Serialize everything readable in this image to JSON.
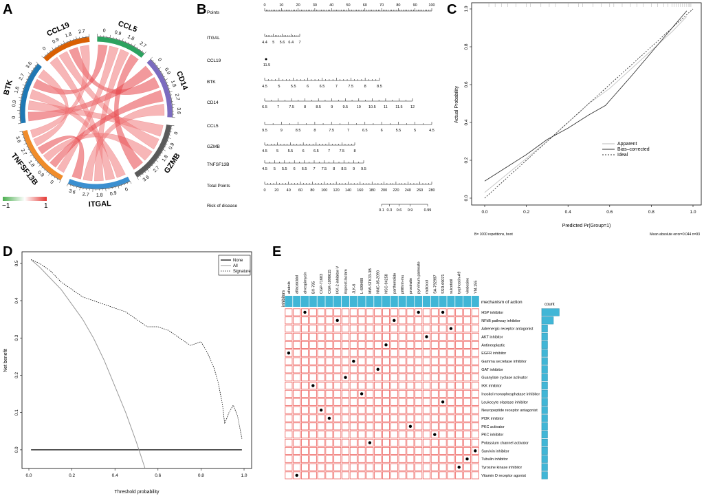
{
  "panels": {
    "a": "A",
    "b": "B",
    "c": "C",
    "d": "D",
    "e": "E"
  },
  "chord": {
    "sectors": [
      {
        "name": "BTK",
        "color": "#1f78b4",
        "ticks": [
          "0",
          "0.9",
          "1.8",
          "2.7",
          "3.6"
        ]
      },
      {
        "name": "CCL19",
        "color": "#d95f02",
        "ticks": [
          "0",
          "0.9",
          "1.8",
          "2.7"
        ]
      },
      {
        "name": "CCL5",
        "color": "#2ca25f",
        "ticks": [
          "0",
          "0.9",
          "1.8",
          "2.7"
        ]
      },
      {
        "name": "CD14",
        "color": "#7b6bbf",
        "ticks": [
          "0",
          "0.9",
          "1.8",
          "2.7",
          "3.6"
        ]
      },
      {
        "name": "GZMB",
        "color": "#5a5a5a",
        "ticks": [
          "0",
          "0.9",
          "1.8",
          "2.7",
          "3.6"
        ]
      },
      {
        "name": "ITGAL",
        "color": "#3b8fd0",
        "ticks": [
          "0",
          "0.9",
          "1.8",
          "2.7",
          "3.6"
        ]
      },
      {
        "name": "TNFSF13B",
        "color": "#f08c2a",
        "ticks": [
          "0",
          "0.9",
          "1.8",
          "2.7",
          "3.6"
        ]
      }
    ],
    "links": [
      [
        0,
        3
      ],
      [
        0,
        4
      ],
      [
        0,
        5
      ],
      [
        0,
        2
      ],
      [
        1,
        5
      ],
      [
        1,
        4
      ],
      [
        1,
        3
      ],
      [
        2,
        6
      ],
      [
        2,
        5
      ],
      [
        3,
        6
      ],
      [
        3,
        5
      ],
      [
        4,
        6
      ],
      [
        5,
        6
      ],
      [
        0,
        6
      ],
      [
        1,
        6
      ],
      [
        2,
        4
      ]
    ],
    "legend": {
      "min": "−1",
      "max": "1"
    }
  },
  "nomogram": {
    "rows": [
      {
        "label": "Points",
        "ticks": [
          "0",
          "10",
          "20",
          "30",
          "40",
          "50",
          "60",
          "70",
          "80",
          "90",
          "100"
        ]
      },
      {
        "label": "ITGAL",
        "ticks": [
          "4.4",
          "5",
          "5.6",
          "6.4",
          "7"
        ]
      },
      {
        "label": "CCL19",
        "ticks": [
          "11.5"
        ]
      },
      {
        "label": "BTK",
        "ticks": [
          "4.5",
          "5",
          "5.5",
          "6",
          "6.5",
          "7",
          "7.5",
          "8",
          "8.5"
        ]
      },
      {
        "label": "CD14",
        "ticks": [
          "6.5",
          "7",
          "7.5",
          "8",
          "8.5",
          "9",
          "9.5",
          "10",
          "10.5",
          "11",
          "11.5",
          "12"
        ]
      },
      {
        "label": "CCL5",
        "ticks": [
          "9.5",
          "9",
          "8.5",
          "8",
          "7.5",
          "7",
          "6.5",
          "6",
          "5.5",
          "5",
          "4.5"
        ]
      },
      {
        "label": "GZMB",
        "ticks": [
          "4.5",
          "5",
          "5.5",
          "6",
          "6.5",
          "7",
          "7.5",
          "8"
        ]
      },
      {
        "label": "TNFSF13B",
        "ticks": [
          "4.5",
          "5",
          "5.5",
          "6",
          "6.5",
          "7",
          "7.5",
          "8",
          "8.5",
          "9",
          "9.5"
        ]
      },
      {
        "label": "Total Points",
        "ticks": [
          "0",
          "20",
          "40",
          "60",
          "80",
          "100",
          "120",
          "140",
          "160",
          "180",
          "200",
          "220",
          "240",
          "260",
          "280"
        ]
      },
      {
        "label": "Risk of disease",
        "ticks": [
          "0.1",
          "0.3",
          "0.6",
          "0.9",
          "0.99"
        ]
      }
    ]
  },
  "chart_data": [
    {
      "id": "calibration",
      "type": "line",
      "xlabel": "Predicted Pr(Group=1)",
      "ylabel": "Actual Probability",
      "xlim": [
        0,
        1
      ],
      "ylim": [
        0,
        1
      ],
      "xticks": [
        "0.0",
        "0.2",
        "0.4",
        "0.6",
        "0.8",
        "1.0"
      ],
      "yticks": [
        "0.0",
        "0.2",
        "0.4",
        "0.6",
        "0.8",
        "1.0"
      ],
      "footer_left": "B= 1000 repetitions, boot",
      "footer_right": "Mean absolute error=0.044 n=93",
      "series": [
        {
          "name": "Apparent",
          "x": [
            0,
            0.1,
            0.2,
            0.3,
            0.4,
            0.5,
            0.6,
            0.7,
            0.8,
            0.9,
            0.97
          ],
          "y": [
            0.03,
            0.12,
            0.21,
            0.3,
            0.4,
            0.5,
            0.58,
            0.68,
            0.78,
            0.88,
            0.96
          ]
        },
        {
          "name": "Bias–corrected",
          "x": [
            0,
            0.1,
            0.2,
            0.3,
            0.4,
            0.5,
            0.58,
            0.7,
            0.8,
            0.9,
            0.97
          ],
          "y": [
            0.09,
            0.16,
            0.23,
            0.31,
            0.37,
            0.44,
            0.49,
            0.64,
            0.77,
            0.9,
            0.99
          ]
        },
        {
          "name": "Ideal",
          "x": [
            0,
            1
          ],
          "y": [
            0,
            1
          ]
        }
      ]
    },
    {
      "id": "dca",
      "type": "line",
      "xlabel": "Threshold probability",
      "ylabel": "Net benefit",
      "xlim": [
        0,
        1
      ],
      "ylim": [
        -0.05,
        0.52
      ],
      "xticks": [
        "0.0",
        "0.2",
        "0.4",
        "0.6",
        "0.8",
        "1.0"
      ],
      "yticks": [
        "0.0",
        "0.1",
        "0.2",
        "0.3",
        "0.4",
        "0.5"
      ],
      "series": [
        {
          "name": "None",
          "x": [
            0.01,
            0.99
          ],
          "y": [
            0,
            0
          ]
        },
        {
          "name": "All",
          "x": [
            0.01,
            0.05,
            0.1,
            0.15,
            0.2,
            0.25,
            0.3,
            0.35,
            0.4,
            0.45,
            0.5,
            0.54
          ],
          "y": [
            0.51,
            0.49,
            0.46,
            0.43,
            0.39,
            0.35,
            0.3,
            0.24,
            0.17,
            0.1,
            0.02,
            -0.05
          ]
        },
        {
          "name": "Signature",
          "x": [
            0.01,
            0.05,
            0.1,
            0.15,
            0.2,
            0.25,
            0.3,
            0.35,
            0.4,
            0.45,
            0.5,
            0.55,
            0.6,
            0.65,
            0.7,
            0.75,
            0.8,
            0.83,
            0.86,
            0.88,
            0.9,
            0.91,
            0.93,
            0.95,
            0.97,
            0.99
          ],
          "y": [
            0.51,
            0.5,
            0.48,
            0.45,
            0.43,
            0.41,
            0.4,
            0.39,
            0.38,
            0.37,
            0.35,
            0.33,
            0.33,
            0.32,
            0.3,
            0.28,
            0.29,
            0.26,
            0.22,
            0.18,
            0.12,
            0.07,
            0.1,
            0.12,
            0.09,
            0.03
          ]
        }
      ]
    },
    {
      "id": "drug_matrix",
      "type": "heatmap",
      "header": "mechanism of action",
      "row_label": "inhibitors",
      "count_label": "count",
      "drugs": [
        "afatinib",
        "alfacalcidol",
        "alvespimycin",
        "BX-795",
        "CGP-71683",
        "CGK-1098615",
        "IKK-2-inhibitor-V",
        "iloprost-lactam",
        "JLK-6",
        "L-690488",
        "MW-STK33-3B",
        "NNC-05-2090",
        "NSC-94258",
        "parthenolide",
        "pifithrin-mu",
        "prostratin",
        "pyrvinium-pamoate",
        "radicicol",
        "SA-792987",
        "SSR-69071",
        "sulcotidil",
        "tyrphostin-A9",
        "vindesine",
        "YM-155"
      ],
      "mechanisms": [
        "HSP inhibitor",
        "NFkB pathway inhibitor",
        "Adrenergic receptor antagonist",
        "AKT inhibitor",
        "Antineoplastic",
        "EGFR inhibitor",
        "Gamma secretase inhibitor",
        "GAT inhibitor",
        "Guanylate cyclase activator",
        "IKK inhibitor",
        "Inositol monophosphatase inhibitor",
        "Leukocyte elastase inhibitor",
        "Neuropeptide receptor antagonist",
        "PI3K inhibitor",
        "PKC activator",
        "PKC inhibitor",
        "Potassium channel activator",
        "Survivin inhibitor",
        "Tubulin inhibitor",
        "Tyrosine kinase inhibitor",
        "Vitamin D receptor agonist"
      ],
      "hits": [
        [
          0,
          2
        ],
        [
          0,
          16
        ],
        [
          0,
          19
        ],
        [
          1,
          6
        ],
        [
          1,
          13
        ],
        [
          2,
          20
        ],
        [
          3,
          17
        ],
        [
          4,
          12
        ],
        [
          5,
          0
        ],
        [
          6,
          8
        ],
        [
          7,
          11
        ],
        [
          8,
          7
        ],
        [
          9,
          3
        ],
        [
          10,
          9
        ],
        [
          11,
          19
        ],
        [
          12,
          4
        ],
        [
          13,
          5
        ],
        [
          14,
          15
        ],
        [
          15,
          18
        ],
        [
          16,
          10
        ],
        [
          17,
          23
        ],
        [
          18,
          22
        ],
        [
          19,
          21
        ],
        [
          20,
          1
        ]
      ],
      "counts": [
        3,
        2,
        1,
        1,
        1,
        1,
        1,
        1,
        1,
        1,
        1,
        1,
        1,
        1,
        1,
        1,
        1,
        1,
        1,
        1,
        1
      ]
    }
  ]
}
